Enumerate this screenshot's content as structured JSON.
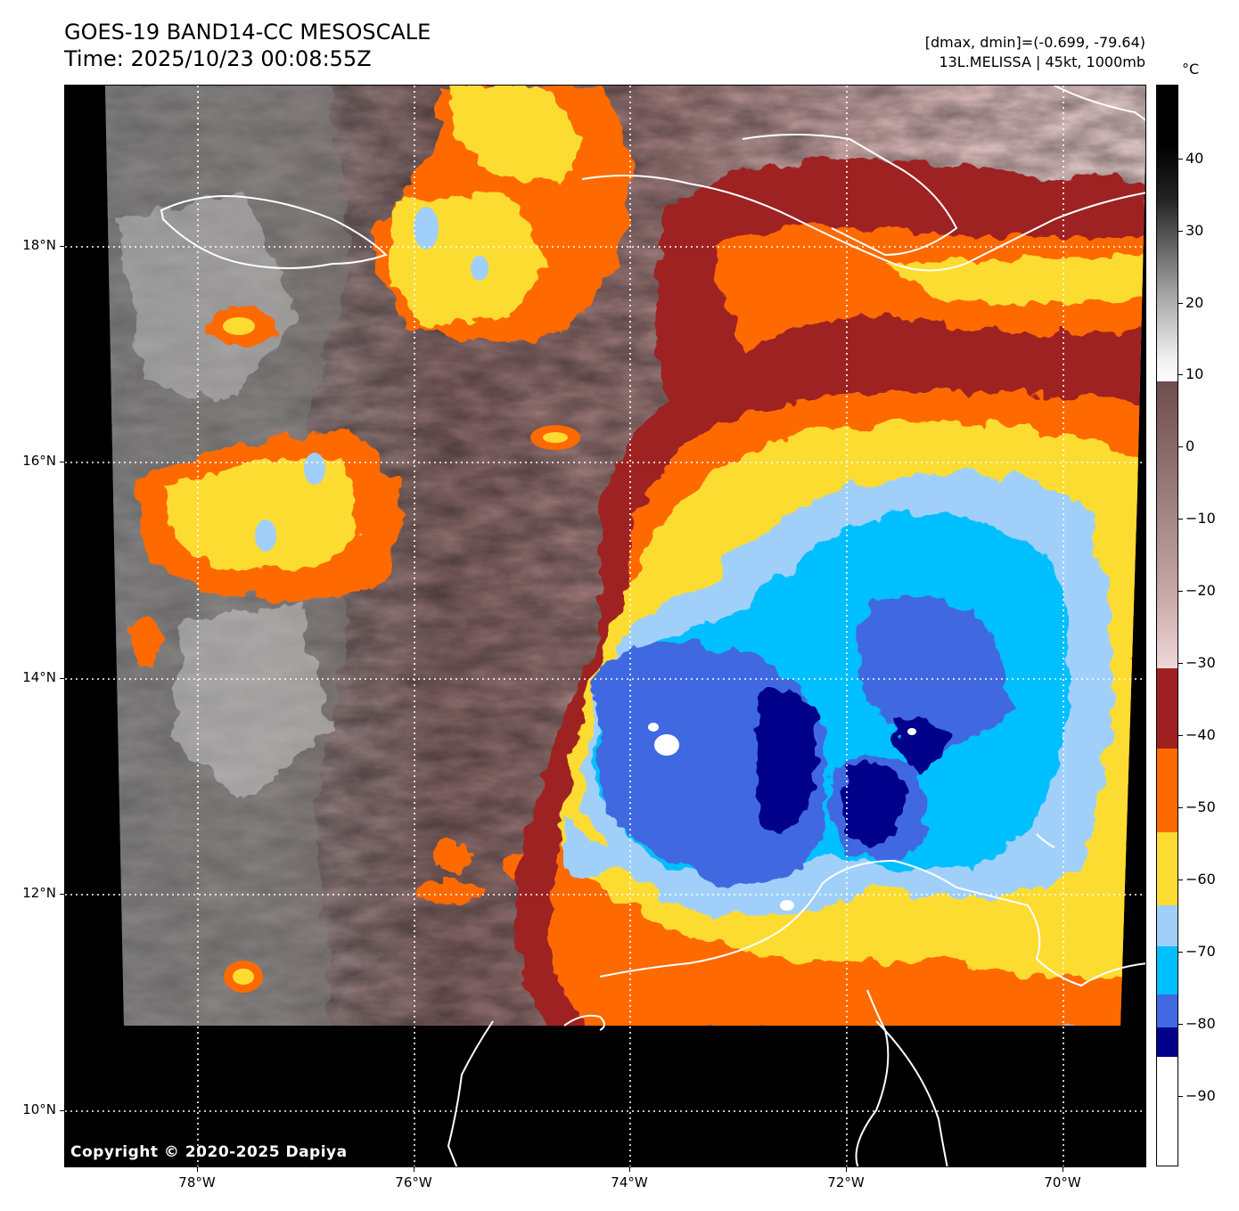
{
  "header": {
    "title_line1": "GOES-19 BAND14-CC MESOSCALE",
    "title_line2": "Time: 2025/10/23 00:08:55Z",
    "info_line1": "[dmax, dmin]=(-0.699, -79.64)",
    "info_line2": "13L.MELISSA | 45kt, 1000mb"
  },
  "map": {
    "copyright": "Copyright © 2020-2025 Dapiya",
    "lat_labels": [
      "18°N",
      "16°N",
      "14°N",
      "12°N",
      "10°N"
    ],
    "lon_labels": [
      "78°W",
      "76°W",
      "74°W",
      "72°W",
      "70°W"
    ],
    "storm_name": "MELISSA"
  },
  "colorbar": {
    "unit": "°C",
    "labels": [
      "40",
      "30",
      "20",
      "10",
      "0",
      "−10",
      "−20",
      "−30",
      "−40",
      "−50",
      "−60",
      "−70",
      "−80",
      "−90"
    ],
    "range": [
      -100,
      50
    ],
    "colors": {
      "below_-85": "#ffffff",
      "-85_-80": "#00008b",
      "-80_-75": "#4169e1",
      "-75_-70": "#00bfff",
      "-70_-65": "#a0d0fa",
      "-65_-55": "#fddc32",
      "-55_-45": "#ff6a00",
      "-45_-30": "#9e2020",
      "-30_9": "gradient pink to brown",
      "9_50": "gradient white to black"
    }
  }
}
